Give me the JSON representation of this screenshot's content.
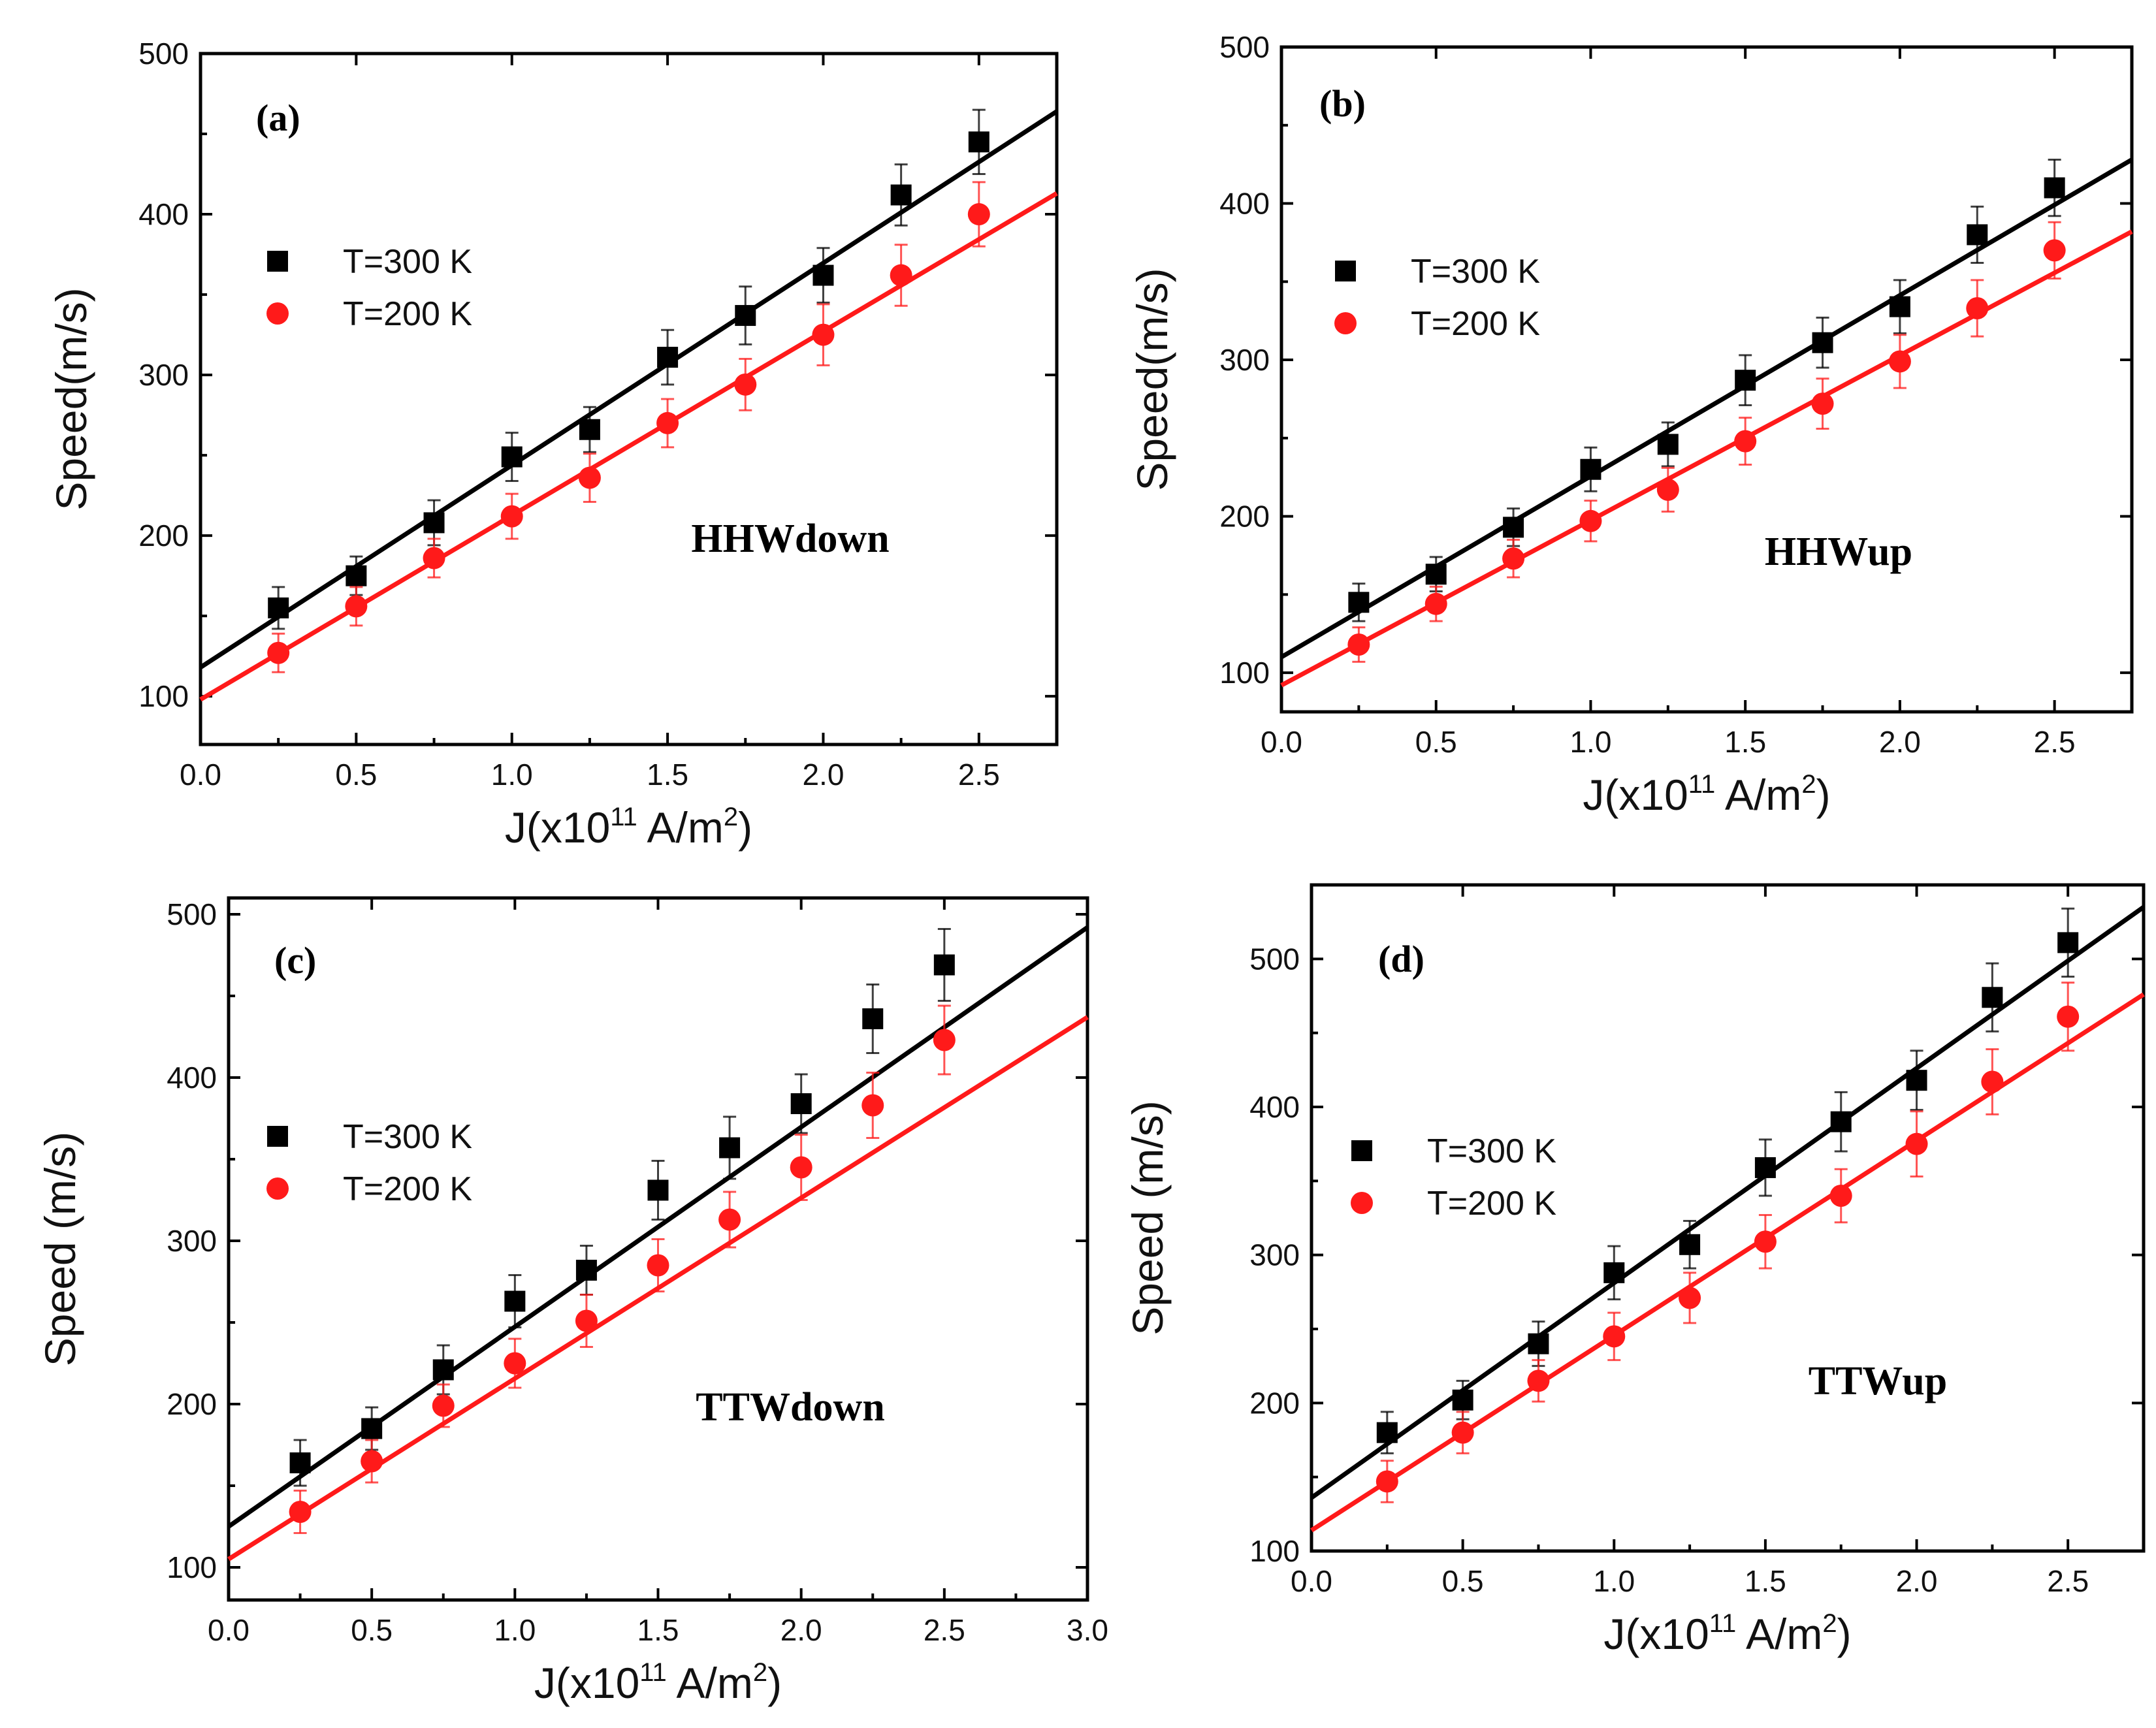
{
  "colors": {
    "t300": "#000000",
    "t200": "#ff1a1a"
  },
  "chart_data": [
    {
      "type": "scatter",
      "panel": "(a)",
      "wall_label": "HHWdown",
      "xlabel": {
        "prefix": "J(x10",
        "exp1": "11",
        "mid": " A/m",
        "exp2": "2",
        "suffix": ")"
      },
      "ylabel": "Speed(m/s)",
      "xlim": [
        0,
        2.75
      ],
      "ylim": [
        70,
        500
      ],
      "xticks": [
        0,
        0.5,
        1.0,
        1.5,
        2.0,
        2.5
      ],
      "xtick_labels": [
        "0.0",
        "0.5",
        "1.0",
        "1.5",
        "2.0",
        "2.5"
      ],
      "yticks": [
        100,
        200,
        300,
        400,
        500
      ],
      "ytick_labels": [
        "100",
        "200",
        "300",
        "400",
        "500"
      ],
      "legend_position": "upper-left",
      "x": [
        0.25,
        0.5,
        0.75,
        1.0,
        1.25,
        1.5,
        1.75,
        2.0,
        2.25,
        2.5
      ],
      "series": [
        {
          "name": "T=300 K",
          "marker": "square",
          "color": "#000000",
          "values": [
            155,
            175,
            208,
            249,
            266,
            311,
            337,
            362,
            412,
            445
          ],
          "errors": [
            13,
            12,
            14,
            15,
            14,
            17,
            18,
            17,
            19,
            20
          ],
          "fit": [
            118,
            464
          ]
        },
        {
          "name": "T=200 K",
          "marker": "circle",
          "color": "#ff1a1a",
          "values": [
            127,
            156,
            186,
            212,
            236,
            270,
            294,
            325,
            362,
            400
          ],
          "errors": [
            12,
            12,
            12,
            14,
            15,
            15,
            16,
            19,
            19,
            20
          ],
          "fit": [
            98,
            413
          ]
        }
      ]
    },
    {
      "type": "scatter",
      "panel": "(b)",
      "wall_label": "HHWup",
      "xlabel": {
        "prefix": "J(x10",
        "exp1": "11",
        "mid": " A/m",
        "exp2": "2",
        "suffix": ")"
      },
      "ylabel": "Speed(m/s)",
      "xlim": [
        0,
        2.75
      ],
      "ylim": [
        75,
        500
      ],
      "xticks": [
        0,
        0.5,
        1.0,
        1.5,
        2.0,
        2.5
      ],
      "xtick_labels": [
        "0.0",
        "0.5",
        "1.0",
        "1.5",
        "2.0",
        "2.5"
      ],
      "yticks": [
        100,
        200,
        300,
        400,
        500
      ],
      "ytick_labels": [
        "100",
        "200",
        "300",
        "400",
        "500"
      ],
      "legend_position": "upper-left",
      "x": [
        0.25,
        0.5,
        0.75,
        1.0,
        1.25,
        1.5,
        1.75,
        2.0,
        2.25,
        2.5
      ],
      "series": [
        {
          "name": "T=300 K",
          "marker": "square",
          "color": "#000000",
          "values": [
            145,
            163,
            193,
            230,
            246,
            287,
            311,
            334,
            380,
            410
          ],
          "errors": [
            12,
            11,
            12,
            14,
            14,
            16,
            16,
            17,
            18,
            18
          ],
          "fit": [
            110,
            428
          ]
        },
        {
          "name": "T=200 K",
          "marker": "circle",
          "color": "#ff1a1a",
          "values": [
            118,
            144,
            173,
            197,
            217,
            248,
            272,
            299,
            333,
            370
          ],
          "errors": [
            11,
            11,
            12,
            13,
            14,
            15,
            16,
            17,
            18,
            18
          ],
          "fit": [
            92,
            382
          ]
        }
      ]
    },
    {
      "type": "scatter",
      "panel": "(c)",
      "wall_label": "TTWdown",
      "xlabel": {
        "prefix": "J(x10",
        "exp1": "11",
        "mid": " A/m",
        "exp2": "2",
        "suffix": ")"
      },
      "ylabel": "Speed (m/s)",
      "xlim": [
        0,
        3.0
      ],
      "ylim": [
        80,
        510
      ],
      "xticks": [
        0,
        0.5,
        1.0,
        1.5,
        2.0,
        2.5,
        3.0
      ],
      "xtick_labels": [
        "0.0",
        "0.5",
        "1.0",
        "1.5",
        "2.0",
        "2.5",
        "3.0"
      ],
      "yticks": [
        100,
        200,
        300,
        400,
        500
      ],
      "ytick_labels": [
        "100",
        "200",
        "300",
        "400",
        "500"
      ],
      "legend_position": "middle-left",
      "x": [
        0.25,
        0.5,
        0.75,
        1.0,
        1.25,
        1.5,
        1.75,
        2.0,
        2.25,
        2.5
      ],
      "series": [
        {
          "name": "T=300 K",
          "marker": "square",
          "color": "#000000",
          "values": [
            164,
            185,
            221,
            263,
            282,
            331,
            357,
            384,
            436,
            469
          ],
          "errors": [
            14,
            13,
            15,
            16,
            15,
            18,
            19,
            18,
            21,
            22
          ],
          "fit": [
            125,
            492
          ]
        },
        {
          "name": "T=200 K",
          "marker": "circle",
          "color": "#ff1a1a",
          "values": [
            134,
            165,
            199,
            225,
            251,
            285,
            313,
            345,
            383,
            423
          ],
          "errors": [
            13,
            13,
            13,
            15,
            16,
            16,
            17,
            20,
            20,
            21
          ],
          "fit": [
            105,
            437
          ]
        }
      ]
    },
    {
      "type": "scatter",
      "panel": "(d)",
      "wall_label": "TTWup",
      "xlabel": {
        "prefix": "J(x10",
        "exp1": "11",
        "mid": " A/m",
        "exp2": "2",
        "suffix": ")"
      },
      "ylabel": "Speed (m/s)",
      "xlim": [
        0,
        2.75
      ],
      "ylim": [
        100,
        550
      ],
      "xticks": [
        0,
        0.5,
        1.0,
        1.5,
        2.0,
        2.5
      ],
      "xtick_labels": [
        "0.0",
        "0.5",
        "1.0",
        "1.5",
        "2.0",
        "2.5"
      ],
      "yticks": [
        100,
        200,
        300,
        400,
        500
      ],
      "ytick_labels": [
        "100",
        "200",
        "300",
        "400",
        "500"
      ],
      "legend_position": "middle-left",
      "x": [
        0.25,
        0.5,
        0.75,
        1.0,
        1.25,
        1.5,
        1.75,
        2.0,
        2.25,
        2.5
      ],
      "series": [
        {
          "name": "T=300 K",
          "marker": "square",
          "color": "#000000",
          "values": [
            180,
            202,
            240,
            288,
            307,
            359,
            390,
            418,
            474,
            511
          ],
          "errors": [
            14,
            13,
            15,
            18,
            16,
            19,
            20,
            20,
            23,
            23
          ],
          "fit": [
            136,
            535
          ]
        },
        {
          "name": "T=200 K",
          "marker": "circle",
          "color": "#ff1a1a",
          "values": [
            147,
            180,
            215,
            245,
            271,
            309,
            340,
            375,
            417,
            461
          ],
          "errors": [
            14,
            14,
            14,
            16,
            17,
            18,
            18,
            22,
            22,
            23
          ],
          "fit": [
            114,
            476
          ]
        }
      ]
    }
  ]
}
